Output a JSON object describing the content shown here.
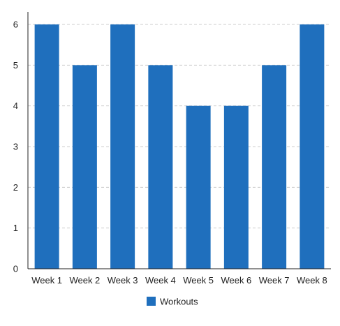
{
  "chart_data": {
    "type": "bar",
    "categories": [
      "Week 1",
      "Week 2",
      "Week 3",
      "Week 4",
      "Week 5",
      "Week 6",
      "Week 7",
      "Week 8"
    ],
    "series": [
      {
        "name": "Workouts",
        "values": [
          6,
          5,
          6,
          5,
          4,
          4,
          5,
          6
        ]
      }
    ],
    "title": "",
    "xlabel": "",
    "ylabel": "",
    "ylim": [
      0,
      6
    ],
    "yticks": [
      0,
      1,
      2,
      3,
      4,
      5,
      6
    ],
    "grid": true,
    "legend_position": "bottom-center",
    "colors": {
      "bar": "#1f6fbd",
      "grid": "#cccccc",
      "axis": "#222222"
    }
  }
}
